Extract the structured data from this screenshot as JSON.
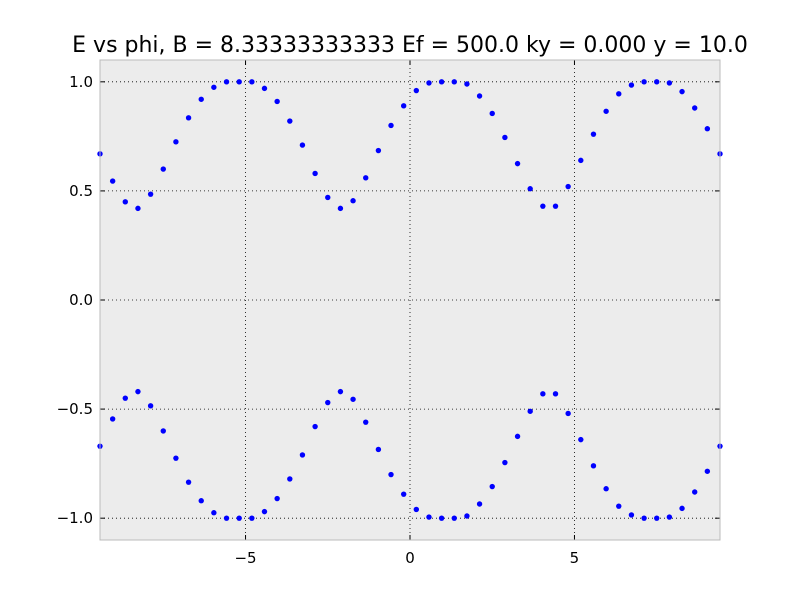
{
  "chart_data": {
    "type": "scatter",
    "title": "E vs phi, B = 8.33333333333 Ef = 500.0 ky = 0.000 y = 10.0",
    "xlabel": "",
    "ylabel": "",
    "xlim": [
      -9.4248,
      9.4248
    ],
    "ylim": [
      -1.1,
      1.1
    ],
    "xticks": [
      -5,
      0,
      5
    ],
    "xtick_labels": [
      "−5",
      "0",
      "5"
    ],
    "yticks": [
      1.0,
      0.5,
      0.0,
      -0.5,
      -1.0
    ],
    "ytick_labels": [
      "1.0",
      "0.5",
      "0.0",
      "−0.5",
      "−1.0"
    ],
    "grid": true,
    "grid_style": "dotted",
    "background": "#ececec",
    "marker_color": "#0000ff",
    "x": [
      -9.425,
      -9.04,
      -8.656,
      -8.271,
      -7.886,
      -7.501,
      -7.117,
      -6.732,
      -6.347,
      -5.963,
      -5.578,
      -5.193,
      -4.808,
      -4.424,
      -4.039,
      -3.654,
      -3.27,
      -2.885,
      -2.5,
      -2.115,
      -1.731,
      -1.346,
      -0.961,
      -0.577,
      -0.192,
      0.192,
      0.577,
      0.961,
      1.346,
      1.731,
      2.115,
      2.5,
      2.885,
      3.27,
      3.654,
      4.039,
      4.424,
      4.808,
      5.193,
      5.578,
      5.963,
      6.347,
      6.732,
      7.117,
      7.501,
      7.886,
      8.271,
      8.656,
      9.04,
      9.425
    ],
    "series": [
      {
        "values": [
          0.67,
          0.545,
          0.45,
          0.42,
          0.485,
          0.6,
          0.725,
          0.835,
          0.92,
          0.975,
          1.0,
          1.0,
          1.0,
          0.97,
          0.91,
          0.82,
          0.71,
          0.58,
          0.47,
          0.42,
          0.455,
          0.56,
          0.685,
          0.8,
          0.89,
          0.96,
          0.995,
          1.0,
          1.0,
          0.99,
          0.935,
          0.855,
          0.745,
          0.625,
          0.51,
          0.43,
          0.43,
          0.52,
          0.64,
          0.76,
          0.865,
          0.945,
          0.985,
          1.0,
          1.0,
          0.995,
          0.955,
          0.88,
          0.785,
          0.67
        ]
      },
      {
        "values": [
          -0.67,
          -0.545,
          -0.45,
          -0.42,
          -0.485,
          -0.6,
          -0.725,
          -0.835,
          -0.92,
          -0.975,
          -1.0,
          -1.0,
          -1.0,
          -0.97,
          -0.91,
          -0.82,
          -0.71,
          -0.58,
          -0.47,
          -0.42,
          -0.455,
          -0.56,
          -0.685,
          -0.8,
          -0.89,
          -0.96,
          -0.995,
          -1.0,
          -1.0,
          -0.99,
          -0.935,
          -0.855,
          -0.745,
          -0.625,
          -0.51,
          -0.43,
          -0.43,
          -0.52,
          -0.64,
          -0.76,
          -0.865,
          -0.945,
          -0.985,
          -1.0,
          -1.0,
          -0.995,
          -0.955,
          -0.88,
          -0.785,
          -0.67
        ]
      }
    ]
  }
}
